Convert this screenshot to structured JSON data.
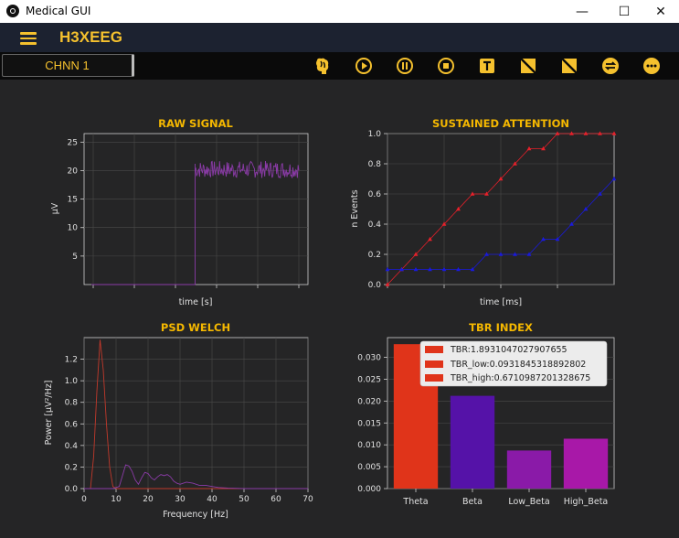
{
  "window": {
    "title": "Medical GUI",
    "minimize": "—",
    "maximize": "☐",
    "close": "✕"
  },
  "appbar": {
    "title": "H3XEEG"
  },
  "toolbar": {
    "channel": "CHNN 1",
    "buttons": [
      "brain-icon",
      "play-icon",
      "pause-icon",
      "stop-icon",
      "text-icon",
      "no-signal-icon",
      "no-signal-alt-icon",
      "swap-icon",
      "more-icon"
    ],
    "accent": "#f5c12e"
  },
  "charts": {
    "raw": {
      "type": "line",
      "title": "RAW SIGNAL",
      "xlabel": "time [s]",
      "ylabel": "μV",
      "yticks": [
        "5",
        "10",
        "15",
        "20",
        "25"
      ],
      "ylim": [
        0,
        26.5
      ],
      "color": "#8b3ba8",
      "segments": [
        {
          "from": 0,
          "to": 0.5,
          "value": 0
        },
        {
          "from": 0.5,
          "to": 1.0,
          "value": 20.2,
          "noise": 1.5
        }
      ]
    },
    "attention": {
      "type": "line",
      "title": "SUSTAINED ATTENTION",
      "xlabel": "time [ms]",
      "ylabel": "n Events",
      "yticks": [
        "0.0",
        "0.2",
        "0.4",
        "0.6",
        "0.8",
        "1.0"
      ],
      "ylim": [
        0,
        1
      ],
      "series": [
        {
          "name": "",
          "color": "#e8202a",
          "values": [
            0,
            0.1,
            0.2,
            0.3,
            0.4,
            0.5,
            0.6,
            0.6,
            0.7,
            0.8,
            0.9,
            0.9,
            1.0,
            1.0,
            1.0,
            1.0,
            1.0
          ]
        },
        {
          "name": "",
          "color": "#1a1adc",
          "values": [
            0.1,
            0.1,
            0.1,
            0.1,
            0.1,
            0.1,
            0.1,
            0.2,
            0.2,
            0.2,
            0.2,
            0.3,
            0.3,
            0.4,
            0.5,
            0.6,
            0.7
          ]
        }
      ]
    },
    "psd": {
      "type": "line",
      "title": "PSD WELCH",
      "xlabel": "Frequency [Hz]",
      "ylabel": "Power [μV²/Hz]",
      "xticks": [
        "0",
        "10",
        "20",
        "30",
        "40",
        "50",
        "60",
        "70"
      ],
      "yticks": [
        "0.0",
        "0.2",
        "0.4",
        "0.6",
        "0.8",
        "1.0",
        "1.2"
      ],
      "xlim": [
        0,
        70
      ],
      "ylim": [
        0,
        1.4
      ],
      "series": [
        {
          "name": "",
          "color": "#c0392b",
          "x": [
            0,
            2,
            3,
            4,
            5,
            6,
            7,
            8,
            9,
            10,
            70
          ],
          "y": [
            0,
            0,
            0.3,
            0.9,
            1.38,
            1.1,
            0.6,
            0.2,
            0.02,
            0,
            0
          ]
        },
        {
          "name": "",
          "color": "#8b3ba8",
          "x": [
            0,
            9,
            11,
            12,
            13,
            14,
            15,
            16,
            17,
            18,
            19,
            20,
            21,
            22,
            23,
            24,
            25,
            26,
            27,
            28,
            29,
            30,
            32,
            34,
            36,
            38,
            40,
            42,
            45,
            50,
            70
          ],
          "y": [
            0,
            0,
            0.02,
            0.12,
            0.22,
            0.21,
            0.16,
            0.08,
            0.04,
            0.1,
            0.15,
            0.14,
            0.1,
            0.08,
            0.11,
            0.13,
            0.12,
            0.13,
            0.11,
            0.07,
            0.05,
            0.04,
            0.06,
            0.05,
            0.03,
            0.03,
            0.02,
            0.01,
            0.005,
            0,
            0
          ]
        }
      ]
    },
    "tbr": {
      "type": "bar",
      "title": "TBR INDEX",
      "categories": [
        "Theta",
        "Beta",
        "Low_Beta",
        "High_Beta"
      ],
      "values": [
        0.033,
        0.0212,
        0.0087,
        0.0114
      ],
      "colors": [
        "#e0341a",
        "#5512a8",
        "#8a1aa8",
        "#a818a8"
      ],
      "yticks": [
        "0.000",
        "0.005",
        "0.010",
        "0.015",
        "0.020",
        "0.025",
        "0.030"
      ],
      "ylim": [
        0,
        0.0345
      ],
      "legend": [
        "TBR:1.8931047027907655",
        "TBR_low:0.0931845318892802",
        "TBR_high:0.6710987201328675"
      ],
      "legend_color": "#e0341a"
    }
  }
}
